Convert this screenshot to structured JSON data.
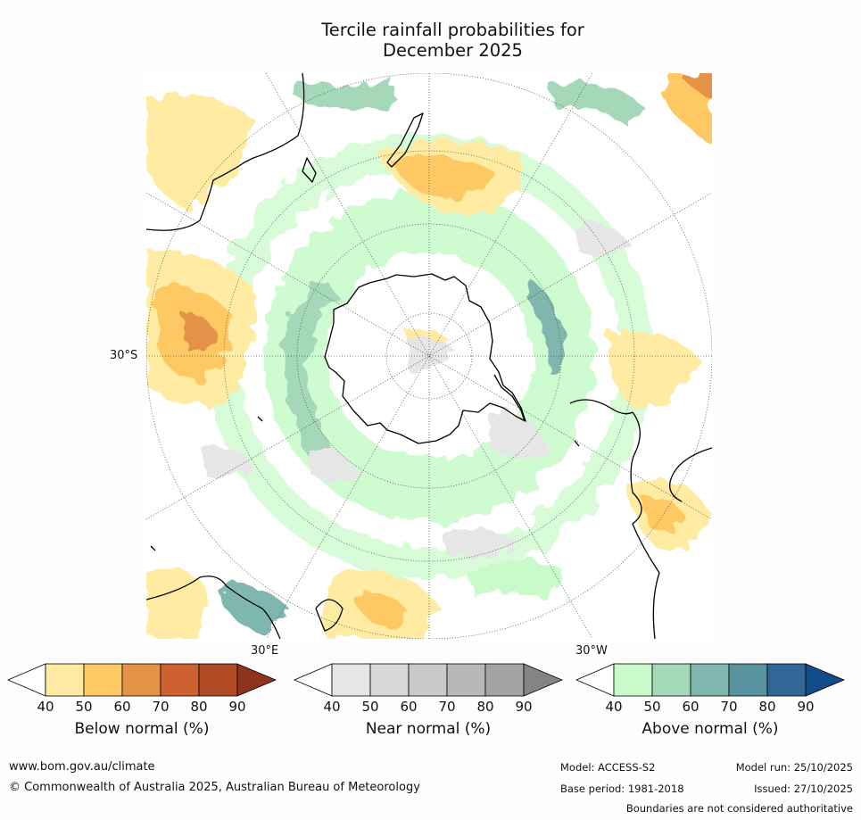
{
  "title_line1": "Tercile rainfall probabilities for",
  "title_line2": "December 2025",
  "axis_labels": {
    "lat_30s": "30°S",
    "lon_30e": "30°E",
    "lon_30w": "30°W"
  },
  "legends": [
    {
      "id": "below",
      "title": "Below normal (%)",
      "ticks": [
        "40",
        "50",
        "60",
        "70",
        "80",
        "90"
      ],
      "colors": [
        "#ffeba1",
        "#fec962",
        "#e49246",
        "#cd6130",
        "#b04a25",
        "#90331c"
      ]
    },
    {
      "id": "near",
      "title": "Near normal (%)",
      "ticks": [
        "40",
        "50",
        "60",
        "70",
        "80",
        "90"
      ],
      "colors": [
        "#e6e6e6",
        "#d8d8d8",
        "#c9c9c9",
        "#b8b8b8",
        "#a3a3a3",
        "#848484"
      ]
    },
    {
      "id": "above",
      "title": "Above normal (%)",
      "ticks": [
        "40",
        "50",
        "60",
        "70",
        "80",
        "90"
      ],
      "colors": [
        "#c9fbca",
        "#a5d8b9",
        "#7fb7af",
        "#5893a0",
        "#316797",
        "#114c88"
      ]
    }
  ],
  "footer": {
    "url": "www.bom.gov.au/climate",
    "copyright": "© Commonwealth of Australia 2025, Australian Bureau of Meteorology",
    "model": "Model: ACCESS-S2",
    "base_period": "Base period: 1981-2018",
    "model_run": "Model run: 25/10/2025",
    "issued": "Issued: 27/10/2025",
    "disclaimer": "Boundaries are not considered authoritative"
  }
}
